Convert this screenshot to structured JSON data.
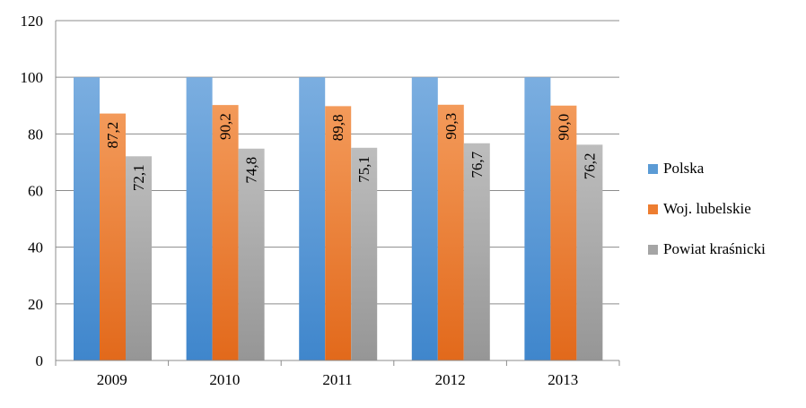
{
  "chart_data": {
    "type": "bar",
    "title": "",
    "xlabel": "",
    "ylabel": "",
    "categories": [
      "2009",
      "2010",
      "2011",
      "2012",
      "2013"
    ],
    "ylim": [
      0,
      120
    ],
    "yticks": [
      0,
      20,
      40,
      60,
      80,
      100,
      120
    ],
    "grid": true,
    "legend_position": "right",
    "series": [
      {
        "name": "Polska",
        "color": "#5B9BD5",
        "values": [
          100,
          100,
          100,
          100,
          100
        ],
        "labels": [
          "",
          "",
          "",
          "",
          ""
        ]
      },
      {
        "name": "Woj. lubelskie",
        "color": "#ED7D31",
        "values": [
          87.2,
          90.2,
          89.8,
          90.3,
          90.0
        ],
        "labels": [
          "87,2",
          "90,2",
          "89,8",
          "90,3",
          "90,0"
        ]
      },
      {
        "name": "Powiat kraśnicki",
        "color": "#A5A5A5",
        "values": [
          72.1,
          74.8,
          75.1,
          76.7,
          76.2
        ],
        "labels": [
          "72,1",
          "74,8",
          "75,1",
          "76,7",
          "76,2"
        ]
      }
    ]
  }
}
